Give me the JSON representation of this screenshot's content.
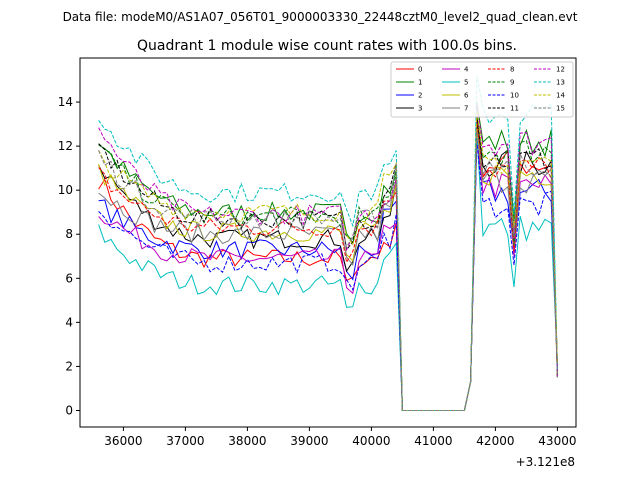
{
  "figure": {
    "suptitle": "Data file: modeM0/AS1A07_056T01_9000003330_22448cztM0_level2_quad_clean.evt"
  },
  "chart_data": {
    "type": "line",
    "title": "Quadrant 1 module wise count rates with 100.0s bins.",
    "xlabel": "",
    "ylabel": "",
    "x_offset_label": "+3.121e8",
    "xlim": [
      35300,
      43300
    ],
    "ylim": [
      -0.75,
      16.0
    ],
    "xticks": [
      36000,
      37000,
      38000,
      39000,
      40000,
      41000,
      42000,
      43000
    ],
    "xtick_labels": [
      "36000",
      "37000",
      "38000",
      "39000",
      "40000",
      "41000",
      "42000",
      "43000"
    ],
    "yticks": [
      0,
      2,
      4,
      6,
      8,
      10,
      12,
      14
    ],
    "ytick_labels": [
      "0",
      "2",
      "4",
      "6",
      "8",
      "10",
      "12",
      "14"
    ],
    "grid": false,
    "legend_position": "top-right",
    "segments": [
      {
        "x_start": 35600,
        "x_end": 40400,
        "step": 100
      },
      {
        "x_start": 40500,
        "x_end": 41500,
        "step": 100
      },
      {
        "x_start": 41600,
        "x_end": 43000,
        "step": 100
      }
    ],
    "series": [
      {
        "name": "0",
        "color": "#ff0000",
        "dash": "solid",
        "start": 10.5,
        "plateau": 6.9,
        "peak": 13.0,
        "high": 11.2,
        "low": 7.1
      },
      {
        "name": "1",
        "color": "#008000",
        "dash": "solid",
        "start": 12.2,
        "plateau": 9.0,
        "peak": 14.0,
        "high": 12.2,
        "low": 8.6
      },
      {
        "name": "2",
        "color": "#0000ff",
        "dash": "solid",
        "start": 9.4,
        "plateau": 7.3,
        "peak": 12.3,
        "high": 9.9,
        "low": 7.4
      },
      {
        "name": "3",
        "color": "#000000",
        "dash": "solid",
        "start": 11.2,
        "plateau": 7.8,
        "peak": 13.2,
        "high": 11.2,
        "low": 7.6
      },
      {
        "name": "4",
        "color": "#c000c0",
        "dash": "solid",
        "start": 9.1,
        "plateau": 6.9,
        "peak": 12.5,
        "high": 10.2,
        "low": 7.0
      },
      {
        "name": "5",
        "color": "#00bfbf",
        "dash": "solid",
        "start": 8.1,
        "plateau": 5.7,
        "peak": 12.6,
        "high": 8.3,
        "low": 5.6
      },
      {
        "name": "6",
        "color": "#bfbf00",
        "dash": "solid",
        "start": 10.9,
        "plateau": 8.1,
        "peak": 12.8,
        "high": 10.8,
        "low": 7.6
      },
      {
        "name": "7",
        "color": "#808080",
        "dash": "solid",
        "start": 10.0,
        "plateau": 8.0,
        "peak": 13.5,
        "high": 10.5,
        "low": 7.3
      },
      {
        "name": "8",
        "color": "#ff0000",
        "dash": "dashed",
        "start": 10.7,
        "plateau": 8.3,
        "peak": 13.3,
        "high": 11.0,
        "low": 7.2
      },
      {
        "name": "9",
        "color": "#008000",
        "dash": "dashed",
        "start": 12.0,
        "plateau": 8.8,
        "peak": 13.6,
        "high": 11.8,
        "low": 7.5
      },
      {
        "name": "10",
        "color": "#0000ff",
        "dash": "dashed",
        "start": 9.2,
        "plateau": 6.7,
        "peak": 12.2,
        "high": 9.3,
        "low": 6.6
      },
      {
        "name": "11",
        "color": "#000000",
        "dash": "dashed",
        "start": 12.0,
        "plateau": 8.7,
        "peak": 13.4,
        "high": 11.4,
        "low": 8.1
      },
      {
        "name": "12",
        "color": "#c000c0",
        "dash": "dashed",
        "start": 12.8,
        "plateau": 8.9,
        "peak": 13.9,
        "high": 12.2,
        "low": 7.8
      },
      {
        "name": "13",
        "color": "#00bfbf",
        "dash": "dashed",
        "start": 13.5,
        "plateau": 9.9,
        "peak": 15.2,
        "high": 13.5,
        "low": 8.9
      },
      {
        "name": "14",
        "color": "#bfbf00",
        "dash": "dashed",
        "start": 11.5,
        "plateau": 9.0,
        "peak": 13.6,
        "high": 11.3,
        "low": 8.3
      },
      {
        "name": "15",
        "color": "#808080",
        "dash": "dashed",
        "start": 11.6,
        "plateau": 8.7,
        "peak": 12.7,
        "high": 11.2,
        "low": 7.9
      }
    ]
  }
}
